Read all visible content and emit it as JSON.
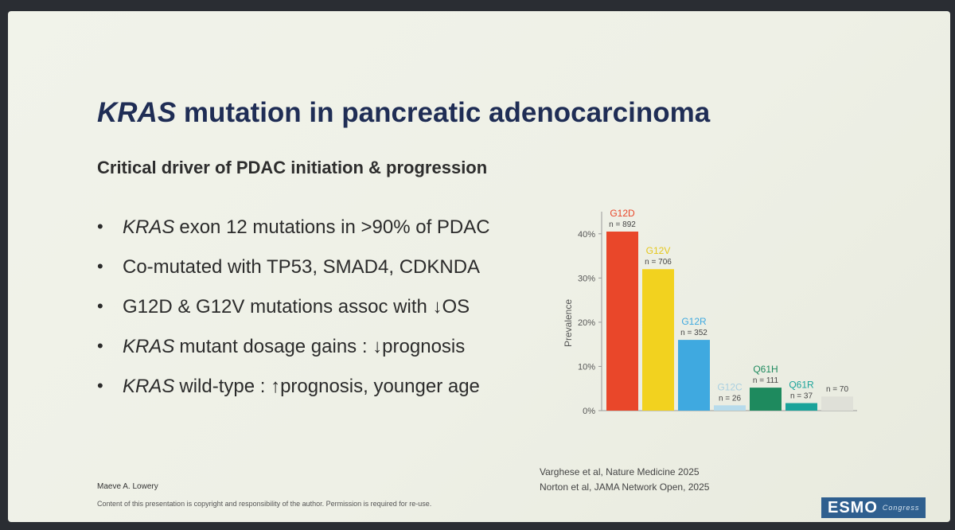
{
  "slide": {
    "title_italic": "KRAS",
    "title_rest": " mutation in pancreatic adenocarcinoma",
    "subtitle": "Critical driver of PDAC initiation & progression",
    "bullets": [
      {
        "italic": "KRAS",
        "text": "exon 12 mutations in >90% of PDAC"
      },
      {
        "italic": "",
        "text": "Co-mutated with TP53, SMAD4, CDKNDA"
      },
      {
        "italic": "",
        "text": "G12D & G12V mutations assoc with ↓OS"
      },
      {
        "italic": "KRAS",
        "text": "mutant dosage gains : ↓prognosis"
      },
      {
        "italic": "KRAS",
        "text": "wild-type : ↑prognosis, younger age"
      }
    ],
    "bullet_symbol": "•",
    "author": "Maeve A. Lowery",
    "disclaimer": "Content of this presentation is copyright and responsibility of the author. Permission is required for re-use.",
    "references": [
      "Varghese et al, Nature Medicine 2025",
      "Norton et al, JAMA Network Open, 2025"
    ],
    "logo": {
      "text": "ESMO",
      "sub": "Congress",
      "color": "#2f5f8f"
    }
  },
  "chart_data": {
    "type": "bar",
    "ylabel": "Prevalence",
    "ylim": [
      0,
      45
    ],
    "yticks": [
      0,
      10,
      20,
      30,
      40
    ],
    "ytick_labels": [
      "0%",
      "10%",
      "20%",
      "30%",
      "40%"
    ],
    "grid": false,
    "categories": [
      "G12D",
      "G12V",
      "G12R",
      "G12C",
      "Q61H",
      "Q61R",
      ""
    ],
    "values": [
      40.5,
      32,
      16,
      1.2,
      5.2,
      1.7,
      3.2
    ],
    "n_labels": [
      "n = 892",
      "n = 706",
      "n = 352",
      "n = 26",
      "n = 111",
      "n = 37",
      "n = 70"
    ],
    "colors": [
      "#e9472a",
      "#f2d21f",
      "#3fa9e0",
      "#b7dbeb",
      "#1e8a5e",
      "#1aa39a",
      "#dfe0d8"
    ],
    "label_colors": [
      "#e9472a",
      "#e5c71c",
      "#3fa9e0",
      "#a9cfe0",
      "#1e8a5e",
      "#1aa39a",
      "#888888"
    ]
  }
}
